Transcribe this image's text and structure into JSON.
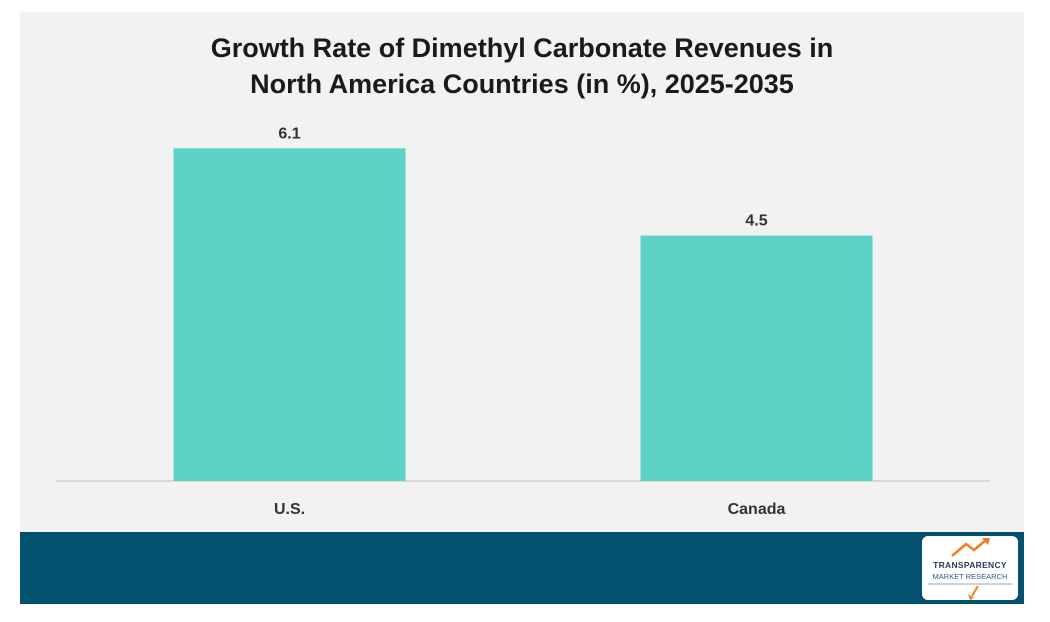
{
  "chart_data": {
    "type": "bar",
    "title_lines": [
      "Growth Rate of Dimethyl Carbonate Revenues in",
      "North America Countries (in %), 2025-2035"
    ],
    "categories": [
      "U.S.",
      "Canada"
    ],
    "values": [
      6.1,
      4.5
    ],
    "value_labels": [
      "6.1",
      "4.5"
    ],
    "ylim": [
      0,
      6.6
    ],
    "grid": false,
    "legend": "none",
    "bar_color": "#5dd3c8",
    "axis_color": "#cfcfcf"
  },
  "colors": {
    "background": "#f2f2f2",
    "footer": "#03506f"
  },
  "footer": {
    "logo_icon": "rising-arrow-icon",
    "logo_text_1": "TRANSPARENCY",
    "logo_text_2": "MARKET RESEARCH"
  }
}
